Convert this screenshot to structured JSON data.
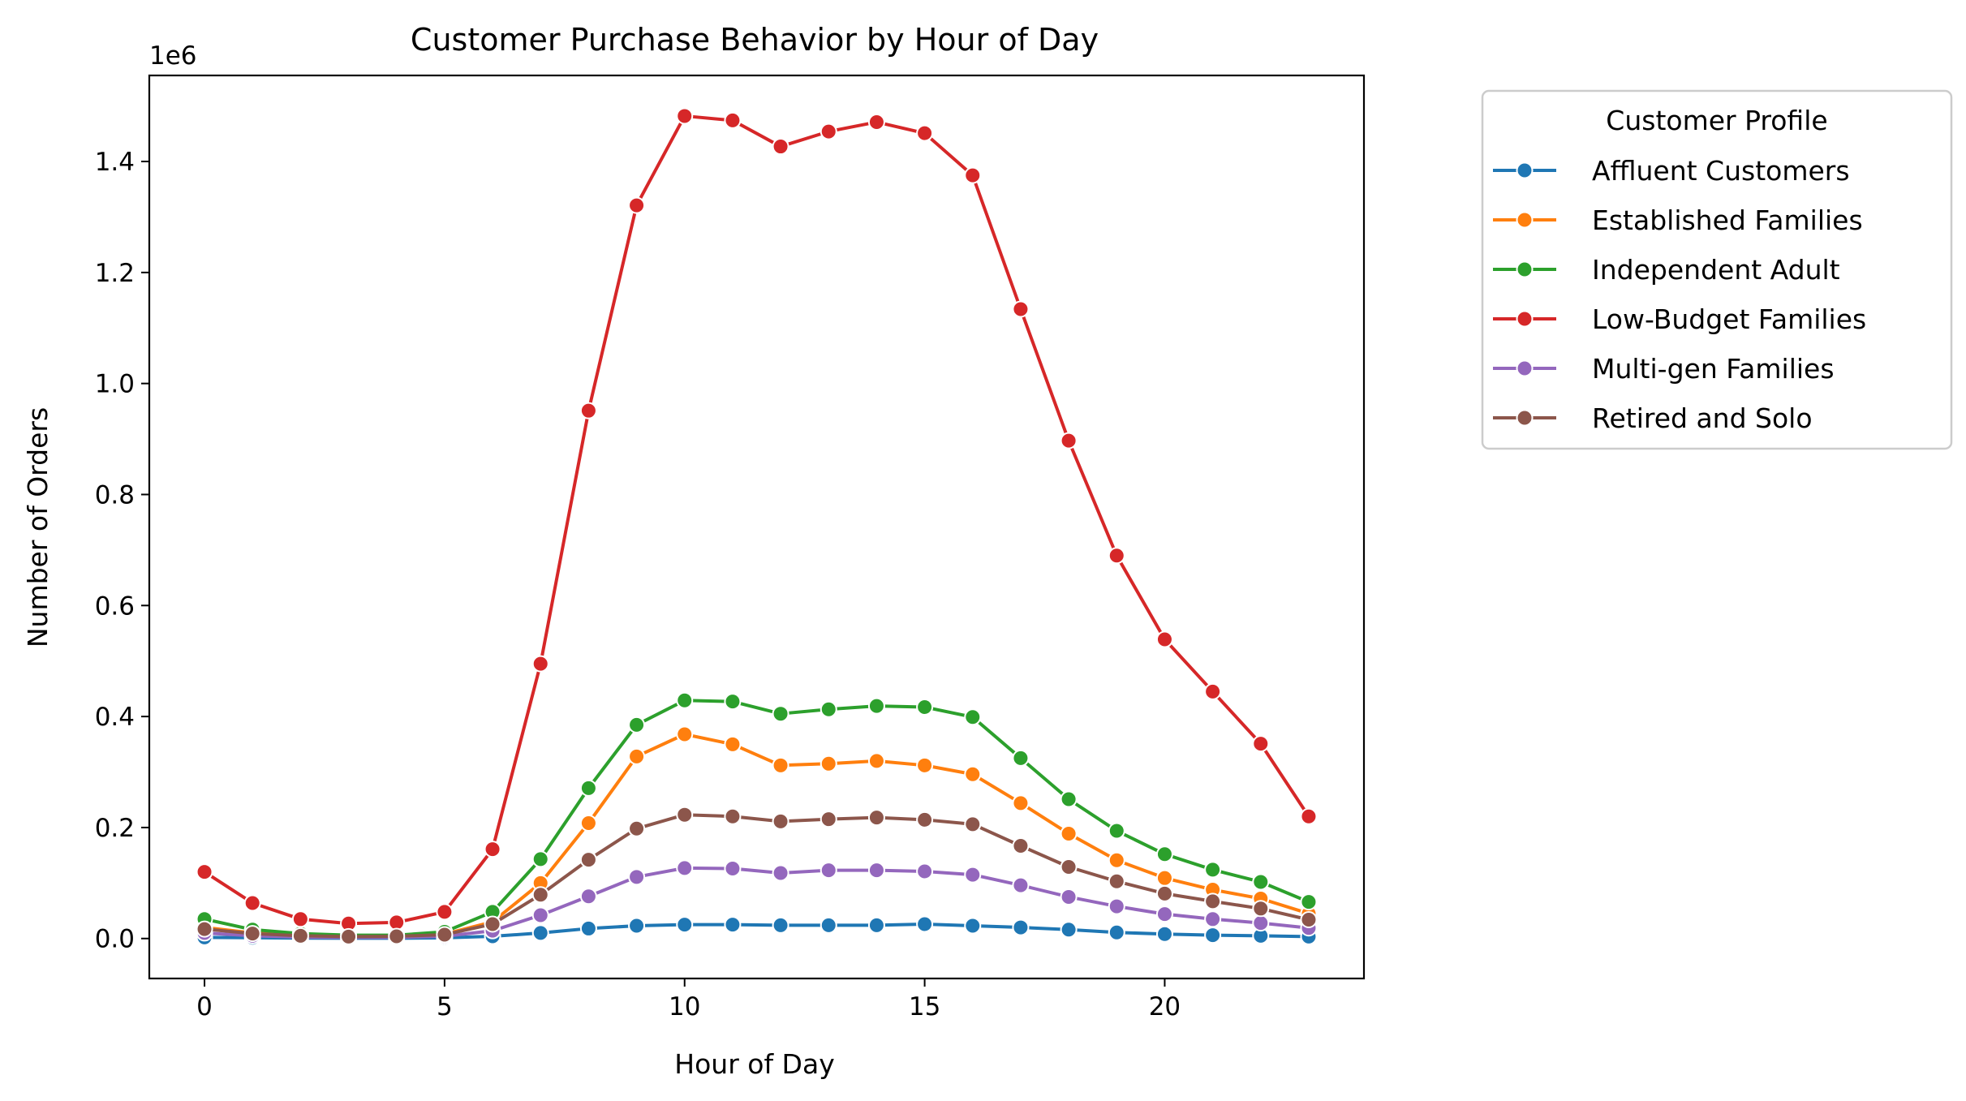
{
  "chart_data": {
    "type": "line",
    "title": "Customer Purchase Behavior by Hour of Day",
    "xlabel": "Hour of Day",
    "ylabel": "Number of Orders",
    "y_offset_text": "1e6",
    "xlim": [
      -1.15,
      24.15
    ],
    "ylim": [
      -72000,
      1555000
    ],
    "xticks": [
      0,
      5,
      10,
      15,
      20
    ],
    "xtick_labels": [
      "0",
      "5",
      "10",
      "15",
      "20"
    ],
    "yticks": [
      0,
      200000,
      400000,
      600000,
      800000,
      1000000,
      1200000,
      1400000
    ],
    "ytick_labels": [
      "0.0",
      "0.2",
      "0.4",
      "0.6",
      "0.8",
      "1.0",
      "1.2",
      "1.4"
    ],
    "grid": false,
    "legend": {
      "title": "Customer Profile",
      "placement": "outside-right"
    },
    "x": [
      0,
      1,
      2,
      3,
      4,
      5,
      6,
      7,
      8,
      9,
      10,
      11,
      12,
      13,
      14,
      15,
      16,
      17,
      18,
      19,
      20,
      21,
      22,
      23
    ],
    "series": [
      {
        "name": "Affluent Customers",
        "color": "#1f77b4",
        "values": [
          2000,
          1500,
          800,
          600,
          600,
          1200,
          4000,
          10000,
          18000,
          23000,
          25000,
          25000,
          24000,
          24000,
          24000,
          26000,
          23000,
          20000,
          16000,
          11000,
          8000,
          6000,
          5000,
          3500
        ]
      },
      {
        "name": "Established Families",
        "color": "#ff7f0e",
        "values": [
          20000,
          10000,
          5500,
          4000,
          4500,
          8000,
          30000,
          100000,
          208000,
          328000,
          368000,
          350000,
          312000,
          315000,
          320000,
          312000,
          296000,
          244000,
          189000,
          141000,
          109000,
          88000,
          72000,
          45000
        ]
      },
      {
        "name": "Independent Adult",
        "color": "#2ca02c",
        "values": [
          35000,
          16000,
          9000,
          6000,
          6000,
          12000,
          48000,
          143000,
          271000,
          385000,
          429000,
          427000,
          405000,
          413000,
          419000,
          417000,
          399000,
          325000,
          251000,
          194000,
          152000,
          124000,
          102000,
          66000
        ]
      },
      {
        "name": "Low-Budget Families",
        "color": "#d62728",
        "values": [
          120000,
          64000,
          35000,
          27000,
          29000,
          48000,
          161000,
          495000,
          951000,
          1321000,
          1482000,
          1474000,
          1427000,
          1454000,
          1471000,
          1451000,
          1375000,
          1134000,
          897000,
          690000,
          539000,
          445000,
          351000,
          220000
        ]
      },
      {
        "name": "Multi-gen Families",
        "color": "#9467bd",
        "values": [
          10000,
          5000,
          2500,
          2000,
          2000,
          4000,
          14000,
          42000,
          76000,
          111000,
          127000,
          126000,
          118000,
          123000,
          123000,
          121000,
          115000,
          96000,
          75000,
          58000,
          44000,
          35000,
          28000,
          19000
        ]
      },
      {
        "name": "Retired and Solo",
        "color": "#8c564b",
        "values": [
          17000,
          9000,
          5000,
          3500,
          4000,
          7000,
          26000,
          79000,
          142000,
          198000,
          223000,
          220000,
          211000,
          215000,
          218000,
          214000,
          206000,
          167000,
          129000,
          103000,
          81000,
          67000,
          54000,
          34000
        ]
      }
    ]
  }
}
